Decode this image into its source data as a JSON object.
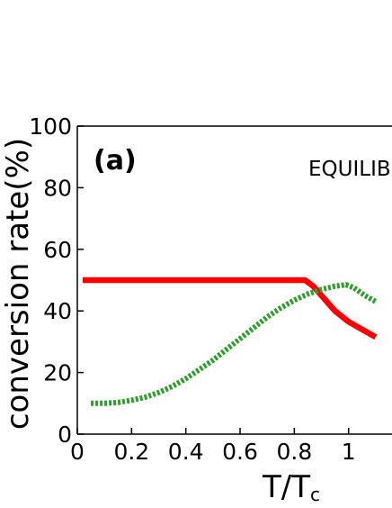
{
  "chart_data": {
    "type": "line",
    "panel_label": "(a)",
    "annotation": "EQUILIB",
    "xlabel_main": "T/T",
    "xlabel_sub": "c",
    "ylabel": "conversion rate(%)",
    "xlim": [
      0,
      1.16
    ],
    "ylim": [
      0,
      100
    ],
    "x_ticks": [
      0,
      0.2,
      0.4,
      0.6,
      0.8,
      1
    ],
    "x_tick_labels": [
      "0",
      "0.2",
      "0.4",
      "0.6",
      "0.8",
      "1"
    ],
    "y_ticks": [
      0,
      20,
      40,
      60,
      80,
      100
    ],
    "y_tick_labels": [
      "0",
      "20",
      "40",
      "60",
      "80",
      "100"
    ],
    "grid": false,
    "series": [
      {
        "color": "#ff0000",
        "style": "solid",
        "points": [
          [
            0.02,
            50
          ],
          [
            0.84,
            50
          ],
          [
            0.87,
            48
          ],
          [
            0.9,
            45
          ],
          [
            0.95,
            40
          ],
          [
            1.0,
            36.5
          ],
          [
            1.06,
            33.5
          ],
          [
            1.1,
            31.5
          ]
        ]
      },
      {
        "color": "#2e9e2e",
        "style": "dotted",
        "points": [
          [
            0.05,
            10
          ],
          [
            0.1,
            10
          ],
          [
            0.15,
            10.3
          ],
          [
            0.2,
            11
          ],
          [
            0.25,
            12
          ],
          [
            0.3,
            13.5
          ],
          [
            0.35,
            15.5
          ],
          [
            0.4,
            18
          ],
          [
            0.45,
            21
          ],
          [
            0.5,
            24
          ],
          [
            0.55,
            27.5
          ],
          [
            0.6,
            31
          ],
          [
            0.65,
            34.5
          ],
          [
            0.7,
            38
          ],
          [
            0.75,
            41
          ],
          [
            0.8,
            43.5
          ],
          [
            0.85,
            45.5
          ],
          [
            0.9,
            47
          ],
          [
            0.95,
            48
          ],
          [
            0.99,
            48.5
          ],
          [
            1.02,
            47.5
          ],
          [
            1.06,
            45
          ],
          [
            1.1,
            43
          ]
        ]
      }
    ]
  }
}
